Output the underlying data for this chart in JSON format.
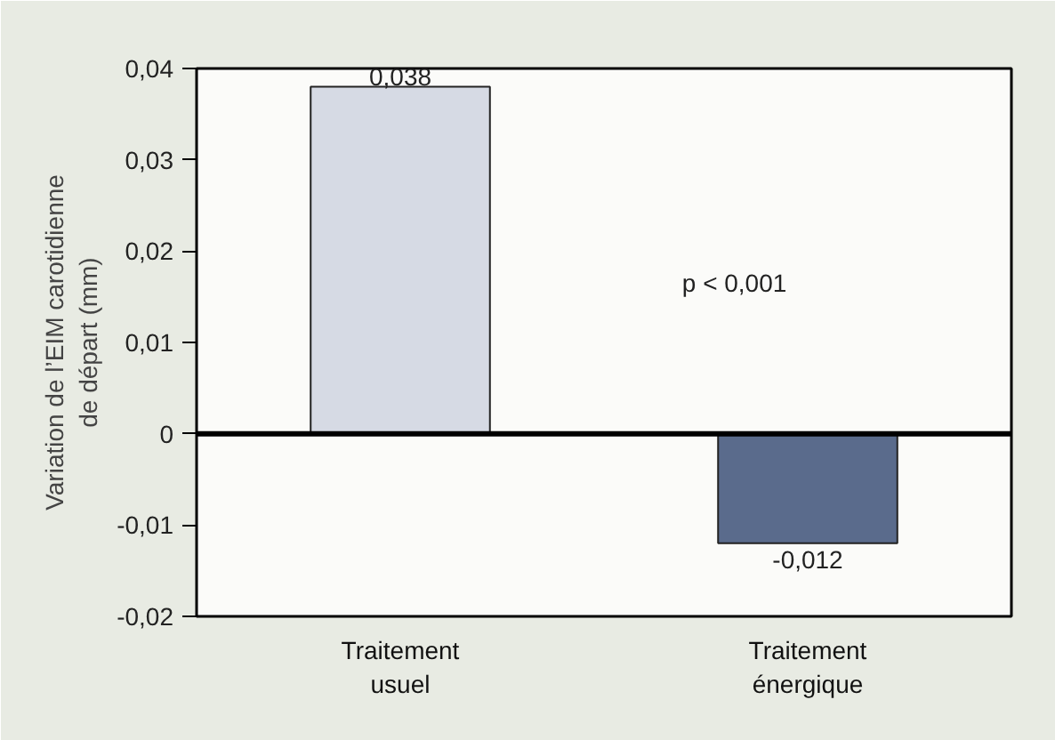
{
  "chart_data": {
    "type": "bar",
    "ylabel": "Variation de l’EIM carotidienne\nde départ (mm)",
    "categories": [
      "Traitement\nusuel",
      "Traitement\nénergique"
    ],
    "values": [
      0.038,
      -0.012
    ],
    "colors": [
      "#d6dae4",
      "#5a6b8c"
    ],
    "value_labels": [
      "0,038",
      "-0,012"
    ],
    "ylim": [
      -0.02,
      0.04
    ],
    "yticks": [
      {
        "value": -0.02,
        "label": "-0,02"
      },
      {
        "value": -0.01,
        "label": "-0,01"
      },
      {
        "value": 0,
        "label": "0"
      },
      {
        "value": 0.01,
        "label": "0,01"
      },
      {
        "value": 0.02,
        "label": "0,02"
      },
      {
        "value": 0.03,
        "label": "0,03"
      },
      {
        "value": 0.04,
        "label": "0,04"
      }
    ],
    "ref_lines": [
      {
        "axis": "y",
        "value": 0,
        "color": "#000000"
      }
    ],
    "annotations": [
      "p < 0,001"
    ],
    "grid": false
  }
}
